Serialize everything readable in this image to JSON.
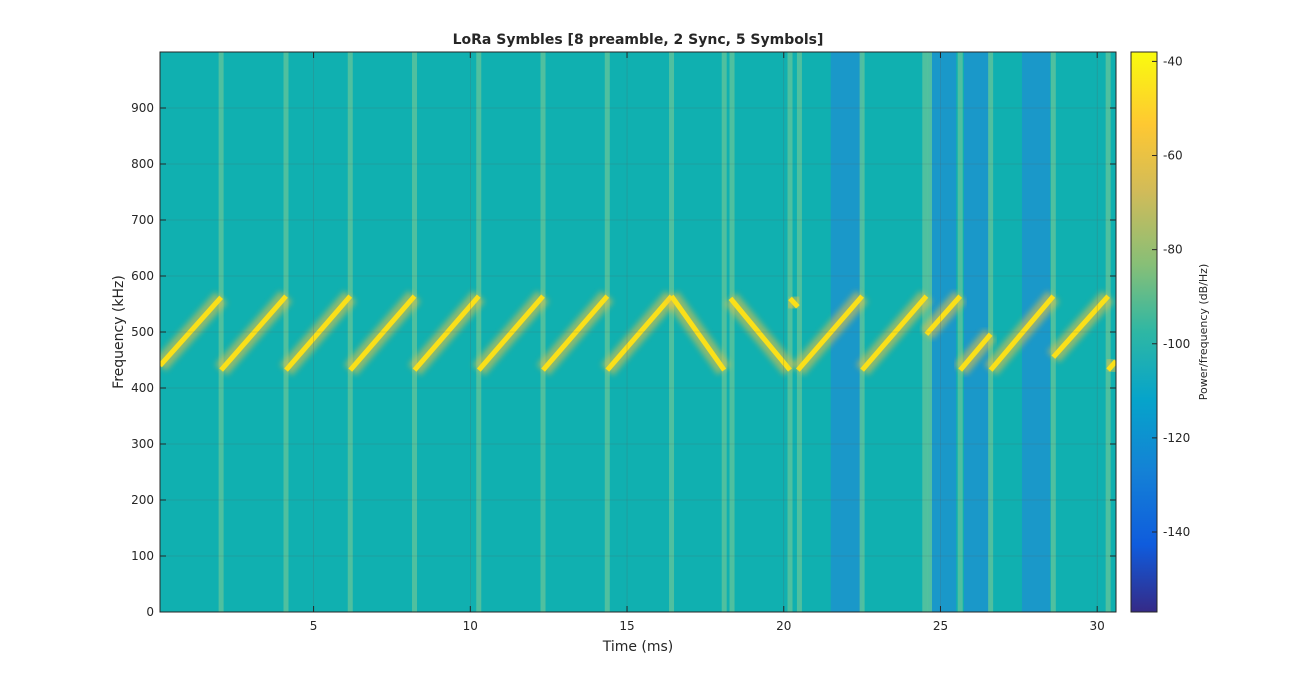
{
  "chart_data": {
    "type": "heatmap",
    "title": "LoRa Symbles [8 preamble, 2 Sync, 5 Symbols]",
    "xlabel": "Time (ms)",
    "ylabel": "Frequency (kHz)",
    "xlim": [
      0.1,
      30.6
    ],
    "ylim": [
      0,
      1000
    ],
    "xticks": [
      5,
      10,
      15,
      20,
      25,
      30
    ],
    "yticks": [
      0,
      100,
      200,
      300,
      400,
      500,
      600,
      700,
      800,
      900
    ],
    "grid": true,
    "colorbar": {
      "label": "Power/frequency (dB/Hz)",
      "range": [
        -157,
        -38
      ],
      "ticks": [
        -140,
        -120,
        -100,
        -80,
        -60,
        -40
      ]
    },
    "chirp_segments": [
      {
        "t0": 0.1,
        "t1": 2.05,
        "f0": 440,
        "f1": 562
      },
      {
        "t0": 2.05,
        "t1": 4.12,
        "f0": 432,
        "f1": 564
      },
      {
        "t0": 4.12,
        "t1": 6.17,
        "f0": 432,
        "f1": 564
      },
      {
        "t0": 6.17,
        "t1": 8.22,
        "f0": 432,
        "f1": 564
      },
      {
        "t0": 8.22,
        "t1": 10.27,
        "f0": 432,
        "f1": 564
      },
      {
        "t0": 10.27,
        "t1": 12.32,
        "f0": 432,
        "f1": 564
      },
      {
        "t0": 12.32,
        "t1": 14.37,
        "f0": 432,
        "f1": 564
      },
      {
        "t0": 14.37,
        "t1": 16.42,
        "f0": 432,
        "f1": 564
      },
      {
        "t0": 16.42,
        "t1": 18.1,
        "f0": 564,
        "f1": 432
      },
      {
        "t0": 18.3,
        "t1": 20.2,
        "f0": 560,
        "f1": 432
      },
      {
        "t0": 20.2,
        "t1": 20.45,
        "f0": 560,
        "f1": 545
      },
      {
        "t0": 20.45,
        "t1": 22.5,
        "f0": 432,
        "f1": 564
      },
      {
        "t0": 22.5,
        "t1": 24.55,
        "f0": 432,
        "f1": 564
      },
      {
        "t0": 24.55,
        "t1": 25.63,
        "f0": 496,
        "f1": 564
      },
      {
        "t0": 25.63,
        "t1": 26.6,
        "f0": 432,
        "f1": 496
      },
      {
        "t0": 26.6,
        "t1": 28.6,
        "f0": 432,
        "f1": 564
      },
      {
        "t0": 28.6,
        "t1": 30.35,
        "f0": 455,
        "f1": 564
      },
      {
        "t0": 30.35,
        "t1": 30.6,
        "f0": 432,
        "f1": 448
      }
    ],
    "transient_times": [
      2.05,
      4.12,
      6.17,
      8.22,
      10.27,
      12.32,
      14.37,
      16.42,
      18.1,
      18.35,
      20.2,
      20.5,
      22.5,
      24.5,
      24.65,
      25.63,
      26.6,
      28.6,
      30.35
    ],
    "low_power_bands": [
      {
        "t0": 21.5,
        "t1": 22.5
      },
      {
        "t0": 24.65,
        "t1": 25.5
      },
      {
        "t0": 25.75,
        "t1": 26.55
      },
      {
        "t0": 27.6,
        "t1": 28.5
      }
    ]
  },
  "colors": {
    "background": "#10b0b0",
    "low_band": "#1a98c9",
    "transient": "#5ac39c",
    "chirp_core": "#fae019",
    "chirp_glow": "#f4c23a",
    "axis": "#262626",
    "grid": "#5a5a5a"
  }
}
